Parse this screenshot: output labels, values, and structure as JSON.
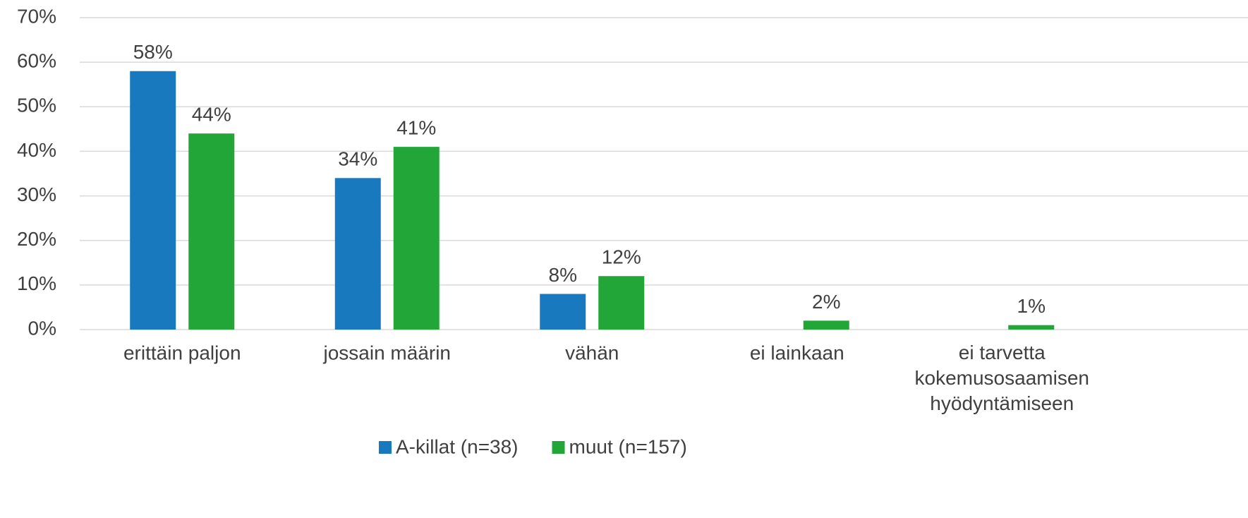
{
  "chart_data": {
    "type": "bar",
    "categories": [
      "erittäin paljon",
      "jossain määrin",
      "vähän",
      "ei lainkaan",
      "ei tarvetta kokemusosaamisen hyödyntämiseen"
    ],
    "series": [
      {
        "name": "A-killat (n=38)",
        "color": "#1879be",
        "values": [
          58,
          34,
          8,
          null,
          null
        ],
        "value_labels": [
          "58%",
          "34%",
          "8%",
          null,
          null
        ]
      },
      {
        "name": "muut (n=157)",
        "color": "#22a637",
        "values": [
          44,
          41,
          12,
          2,
          1
        ],
        "value_labels": [
          "44%",
          "41%",
          "12%",
          "2%",
          "1%"
        ]
      }
    ],
    "ylim": [
      0,
      70
    ],
    "yticks": [
      {
        "value": 0,
        "label": "0%"
      },
      {
        "value": 10,
        "label": "10%"
      },
      {
        "value": 20,
        "label": "20%"
      },
      {
        "value": 30,
        "label": "30%"
      },
      {
        "value": 40,
        "label": "40%"
      },
      {
        "value": 50,
        "label": "50%"
      },
      {
        "value": 60,
        "label": "60%"
      },
      {
        "value": 70,
        "label": "70%"
      }
    ],
    "grid": true,
    "legend": "bottom"
  }
}
